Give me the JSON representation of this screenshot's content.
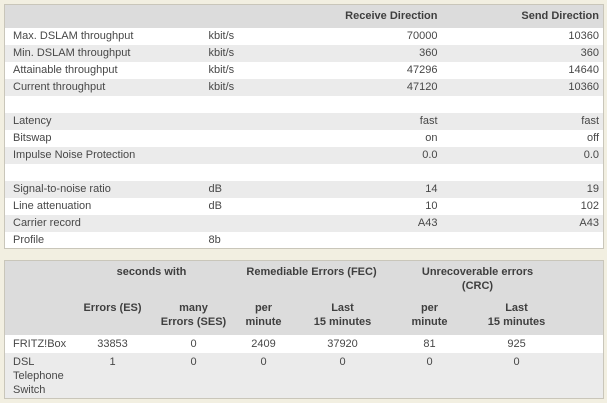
{
  "colors": {
    "page_background": "#f2efe1",
    "table_border": "#c9c6ba",
    "header_background": "#dcdcdc",
    "alt_row_background": "#ebebeb",
    "text": "#474747"
  },
  "table1": {
    "receive_header": "Receive Direction",
    "send_header": "Send Direction",
    "rows": [
      {
        "label": "Max. DSLAM throughput",
        "unit": "kbit/s",
        "receive": "70000",
        "send": "10360"
      },
      {
        "label": "Min. DSLAM throughput",
        "unit": "kbit/s",
        "receive": "360",
        "send": "360"
      },
      {
        "label": "Attainable throughput",
        "unit": "kbit/s",
        "receive": "47296",
        "send": "14640"
      },
      {
        "label": "Current throughput",
        "unit": "kbit/s",
        "receive": "47120",
        "send": "10360"
      },
      {
        "spacer": true
      },
      {
        "label": "Latency",
        "unit": "",
        "receive": "fast",
        "send": "fast"
      },
      {
        "label": "Bitswap",
        "unit": "",
        "receive": "on",
        "send": "off"
      },
      {
        "label": "Impulse Noise Protection",
        "unit": "",
        "receive": "0.0",
        "send": "0.0"
      },
      {
        "spacer": true
      },
      {
        "label": "Signal-to-noise ratio",
        "unit": "dB",
        "receive": "14",
        "send": "19"
      },
      {
        "label": "Line attenuation",
        "unit": "dB",
        "receive": "10",
        "send": "102"
      },
      {
        "label": "Carrier record",
        "unit": "",
        "receive": "A43",
        "send": "A43"
      },
      {
        "label": "Profile",
        "unit": "8b",
        "receive": "",
        "send": ""
      }
    ]
  },
  "table2": {
    "group_headers": {
      "seconds": "seconds with",
      "fec": "Remediable Errors (FEC)",
      "crc": "Unrecoverable errors\n(CRC)"
    },
    "sub_headers": [
      "Errors (ES)",
      "many\nErrors (SES)",
      "per\nminute",
      "Last\n15 minutes",
      "per\nminute",
      "Last\n15 minutes"
    ],
    "rows": [
      {
        "label": "FRITZ!Box",
        "values": [
          "33853",
          "0",
          "2409",
          "37920",
          "81",
          "925"
        ]
      },
      {
        "label": "DSL Telephone Switch",
        "values": [
          "1",
          "0",
          "0",
          "0",
          "0",
          "0"
        ]
      }
    ]
  }
}
